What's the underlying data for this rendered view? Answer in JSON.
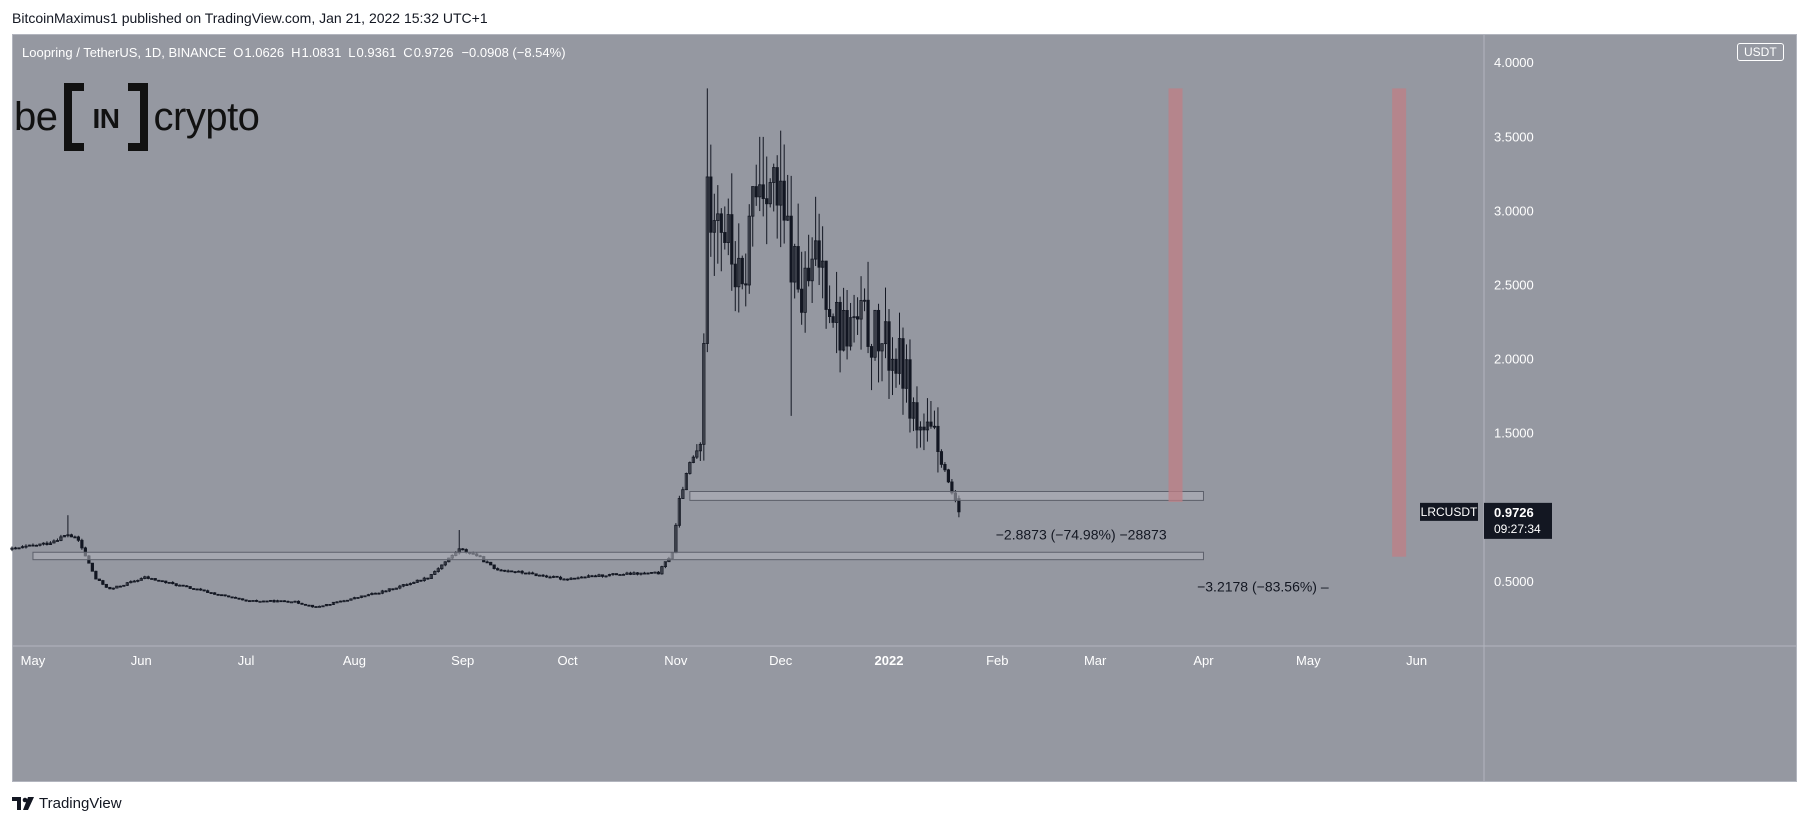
{
  "publish_line": "BitcoinMaximus1 published on TradingView.com, Jan 21, 2022 15:32 UTC+1",
  "legend": {
    "symbol": "Loopring / TetherUS, 1D, BINANCE",
    "open_label": "O",
    "open": "1.0626",
    "high_label": "H",
    "high": "1.0831",
    "low_label": "L",
    "low": "0.9361",
    "close_label": "C",
    "close": "0.9726",
    "change": "−0.0908 (−8.54%)"
  },
  "logo": {
    "left_text": "be",
    "mark_text": "IN",
    "right_text": "crypto"
  },
  "currency_badge": "USDT",
  "footer_brand": "TradingView",
  "colors": {
    "background": "#9598a1",
    "candle": "#131722",
    "zone_fill": "#b2b5be",
    "zone_border": "#5d606b",
    "vertical_marker": "#c07f86",
    "label_dark": "#131722"
  },
  "chart_data": {
    "type": "candlestick",
    "title": "Loopring / TetherUS, 1D, BINANCE",
    "ylabel": "USDT",
    "ylim": [
      0.0,
      4.0
    ],
    "y_ticks": [
      "4.0000",
      "3.5000",
      "3.0000",
      "2.5000",
      "2.0000",
      "1.5000",
      "0.5000"
    ],
    "x_ticks": [
      "May",
      "Jun",
      "Jul",
      "Aug",
      "Sep",
      "Oct",
      "Nov",
      "Dec",
      "2022",
      "Feb",
      "Mar",
      "Apr",
      "May",
      "Jun"
    ],
    "x_tick_dates": [
      "2021-05-01",
      "2021-06-01",
      "2021-07-01",
      "2021-08-01",
      "2021-09-01",
      "2021-10-01",
      "2021-11-01",
      "2021-12-01",
      "2022-01-01",
      "2022-02-01",
      "2022-03-01",
      "2022-04-01",
      "2022-05-01",
      "2022-06-01"
    ],
    "x_range": [
      "2021-04-25",
      "2022-06-20"
    ],
    "price_path": [
      [
        "2021-04-25",
        0.72
      ],
      [
        "2021-05-05",
        0.76
      ],
      [
        "2021-05-11",
        0.82
      ],
      [
        "2021-05-14",
        0.78
      ],
      [
        "2021-05-19",
        0.52
      ],
      [
        "2021-05-23",
        0.45
      ],
      [
        "2021-06-02",
        0.53
      ],
      [
        "2021-06-22",
        0.42
      ],
      [
        "2021-07-01",
        0.37
      ],
      [
        "2021-07-14",
        0.37
      ],
      [
        "2021-07-21",
        0.33
      ],
      [
        "2021-08-10",
        0.44
      ],
      [
        "2021-08-22",
        0.53
      ],
      [
        "2021-08-31",
        0.72
      ],
      [
        "2021-09-05",
        0.68
      ],
      [
        "2021-09-10",
        0.59
      ],
      [
        "2021-09-30",
        0.52
      ],
      [
        "2021-10-14",
        0.55
      ],
      [
        "2021-10-27",
        0.56
      ],
      [
        "2021-10-31",
        0.7
      ],
      [
        "2021-11-02",
        1.05
      ],
      [
        "2021-11-05",
        1.3
      ],
      [
        "2021-11-08",
        1.4
      ],
      [
        "2021-11-10",
        3.0
      ],
      [
        "2021-11-12",
        3.2
      ],
      [
        "2021-11-16",
        2.8
      ],
      [
        "2021-11-20",
        2.4
      ],
      [
        "2021-11-23",
        3.1
      ],
      [
        "2021-11-27",
        3.3
      ],
      [
        "2021-12-02",
        2.9
      ],
      [
        "2021-12-07",
        2.4
      ],
      [
        "2021-12-12",
        2.7
      ],
      [
        "2021-12-18",
        2.2
      ],
      [
        "2021-12-24",
        2.25
      ],
      [
        "2021-12-30",
        2.1
      ],
      [
        "2022-01-05",
        1.95
      ],
      [
        "2022-01-09",
        1.55
      ],
      [
        "2022-01-14",
        1.45
      ],
      [
        "2022-01-19",
        1.1
      ],
      [
        "2022-01-21",
        0.97
      ]
    ],
    "high": 3.83,
    "high_date": "2021-11-10",
    "last": {
      "symbol": "LRCUSDT",
      "price": "0.9726",
      "countdown": "09:27:34"
    },
    "horizontal_zones": [
      {
        "name": "support-zone-upper",
        "from": "2021-11-05",
        "to": "2022-04-01",
        "low": 1.05,
        "high": 1.11
      },
      {
        "name": "support-zone-lower",
        "from": "2021-05-01",
        "to": "2022-04-01",
        "low": 0.65,
        "high": 0.7
      }
    ],
    "vertical_markers": [
      {
        "name": "marker-1",
        "date": "2022-03-24",
        "from": 1.04,
        "to": 3.83
      },
      {
        "name": "marker-2",
        "date": "2022-05-27",
        "from": 0.67,
        "to": 3.83
      }
    ],
    "measurements": [
      {
        "name": "measure-1",
        "text": "−2.8873 (−74.98%) −28873",
        "price": 0.82,
        "date": "2022-02-25"
      },
      {
        "name": "measure-2",
        "text": "−3.2178 (−83.56%) –",
        "price": 0.47,
        "date": "2022-04-18"
      }
    ]
  }
}
